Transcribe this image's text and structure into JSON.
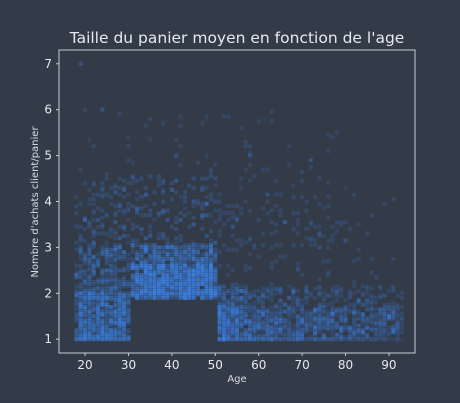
{
  "chart_data": {
    "type": "scatter",
    "title": "Taille du panier moyen en fonction de l'age",
    "xlabel": "Age",
    "ylabel": "Nombre d'achats client/panier",
    "xlim": [
      14,
      96
    ],
    "ylim": [
      0.7,
      7.3
    ],
    "x_ticks": [
      20,
      30,
      40,
      50,
      60,
      70,
      80,
      90
    ],
    "y_ticks": [
      1,
      2,
      3,
      4,
      5,
      6,
      7
    ],
    "x_tick_labels": [
      "20",
      "30",
      "40",
      "50",
      "60",
      "70",
      "80",
      "90"
    ],
    "y_tick_labels": [
      "1",
      "2",
      "3",
      "4",
      "5",
      "6",
      "7"
    ],
    "grid": false,
    "legend": "none",
    "marker_color": "#3d7fe0",
    "background_color": "#333b48",
    "frame_color": "#c5ccd8",
    "clusters": [
      {
        "age_range": [
          18,
          30
        ],
        "y_range": [
          1.0,
          3.0
        ],
        "density": "high",
        "dense_core": [
          1.0,
          2.0
        ]
      },
      {
        "age_range": [
          31,
          50
        ],
        "y_range": [
          1.8,
          3.0
        ],
        "density": "very high",
        "dense_core": [
          1.9,
          2.6
        ]
      },
      {
        "age_range": [
          51,
          93
        ],
        "y_range": [
          1.0,
          2.1
        ],
        "density": "high, decreasing with age",
        "dense_core": [
          1.0,
          1.7
        ]
      }
    ],
    "sparse_points_y_range": [
      3.0,
      7.0
    ],
    "notable_points": [
      {
        "x": 19,
        "y": 7.0
      },
      {
        "x": 24,
        "y": 6.0
      },
      {
        "x": 41,
        "y": 5.0
      },
      {
        "x": 58,
        "y": 5.0
      },
      {
        "x": 72,
        "y": 4.9
      }
    ]
  }
}
